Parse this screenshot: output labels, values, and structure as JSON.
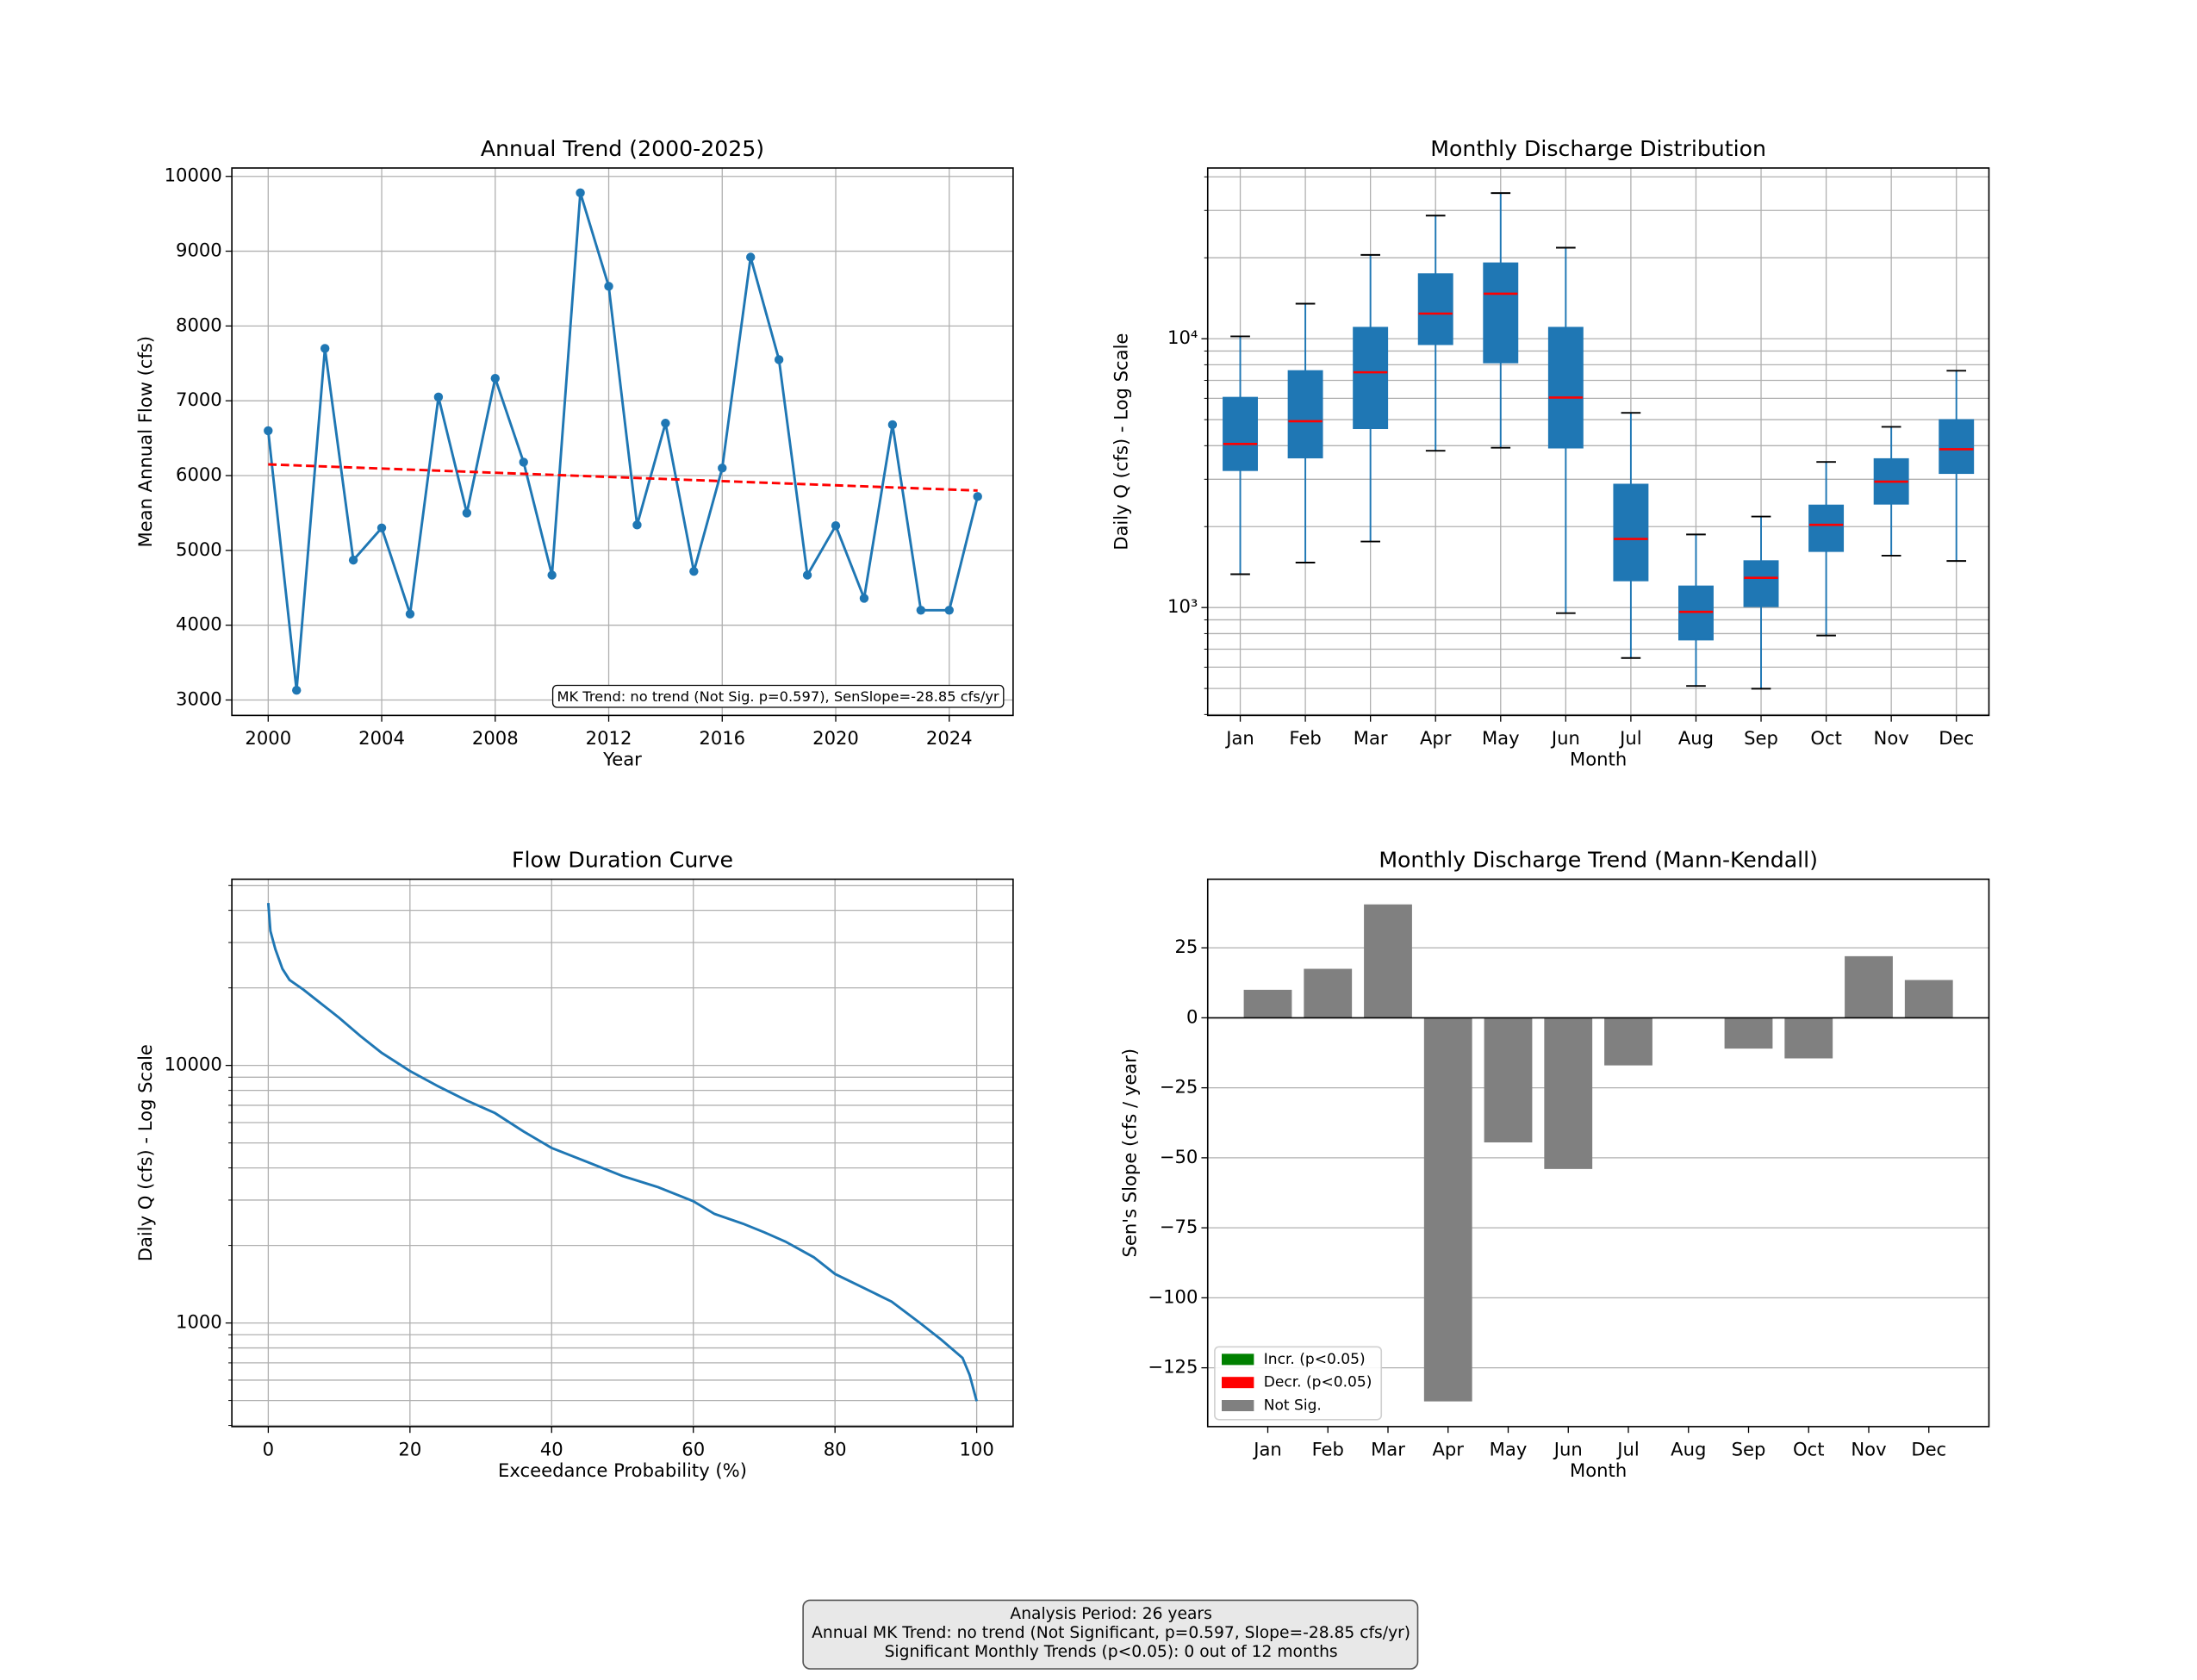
{
  "chart_data": [
    {
      "type": "line",
      "title": "Annual Trend (2000-2025)",
      "x_label": "Year",
      "y_label": "Mean Annual Flow (cfs)",
      "x": [
        2000,
        2001,
        2002,
        2003,
        2004,
        2005,
        2006,
        2007,
        2008,
        2009,
        2010,
        2011,
        2012,
        2013,
        2014,
        2015,
        2016,
        2017,
        2018,
        2019,
        2020,
        2021,
        2022,
        2023,
        2024,
        2025
      ],
      "values": [
        6600,
        3130,
        7700,
        4870,
        5300,
        4150,
        7050,
        5500,
        7300,
        6180,
        4670,
        9780,
        8530,
        5340,
        6700,
        4720,
        6100,
        8920,
        7550,
        4670,
        5330,
        4360,
        6680,
        4200,
        4200,
        5720
      ],
      "color": "#1f77b4",
      "markers": true,
      "trend": {
        "x": [
          2000,
          2025
        ],
        "values": [
          6150,
          5800
        ],
        "color": "#ff0000",
        "style": "dashed"
      },
      "annotation": "MK Trend: no trend (Not Sig. p=0.597), SenSlope=-28.85 cfs/yr",
      "xlim": [
        1998.72,
        2026.25
      ],
      "xticks": [
        2000,
        2004,
        2008,
        2012,
        2016,
        2020,
        2024
      ],
      "ylim": [
        2794,
        10112
      ],
      "yticks": [
        3000,
        4000,
        5000,
        6000,
        7000,
        8000,
        9000,
        10000
      ],
      "grid": "both"
    },
    {
      "type": "box",
      "title": "Monthly Discharge Distribution",
      "x_label": "Month",
      "y_label": "Daily Q (cfs) - Log Scale",
      "categories": [
        "Jan",
        "Feb",
        "Mar",
        "Apr",
        "May",
        "Jun",
        "Jul",
        "Aug",
        "Sep",
        "Oct",
        "Nov",
        "Dec"
      ],
      "whisker_low": [
        1330,
        1470,
        1760,
        3830,
        3930,
        953,
        649,
        511,
        499,
        787,
        1560,
        1490
      ],
      "q1": [
        3240,
        3610,
        4640,
        9530,
        8150,
        3930,
        1260,
        759,
        1010,
        1620,
        2430,
        3160
      ],
      "median": [
        4060,
        4930,
        7500,
        12400,
        14700,
        6040,
        1800,
        964,
        1290,
        2030,
        2940,
        3880
      ],
      "q3": [
        6040,
        7590,
        11000,
        17400,
        19100,
        11000,
        2870,
        1200,
        1490,
        2400,
        3570,
        4990
      ],
      "whisker_high": [
        10200,
        13500,
        20500,
        28700,
        34800,
        21800,
        5300,
        1870,
        2180,
        3480,
        4700,
        7600
      ],
      "box_color": "#1f77b4",
      "median_color": "#ff0000",
      "cap_color": "#000000",
      "log_scale": true,
      "ylim": [
        397,
        43150
      ],
      "yticks": [
        {
          "value": 1000,
          "label": "10³"
        },
        {
          "value": 10000,
          "label": "10⁴"
        }
      ],
      "minor_yticks": [
        400,
        500,
        600,
        700,
        800,
        900,
        2000,
        3000,
        4000,
        5000,
        6000,
        7000,
        8000,
        9000,
        20000,
        30000,
        40000
      ],
      "grid": "both"
    },
    {
      "type": "line",
      "title": "Flow Duration Curve",
      "x_label": "Exceedance Probability (%)",
      "y_label": "Daily Q (cfs) - Log Scale",
      "x": [
        0,
        0.3,
        1,
        2,
        3,
        5,
        7,
        10,
        13,
        16,
        20,
        24,
        28,
        32,
        36,
        40,
        45,
        50,
        55,
        60,
        63,
        67,
        70,
        73,
        77,
        80,
        84,
        88,
        92,
        95,
        98,
        99,
        100
      ],
      "values": [
        42700,
        33250,
        28260,
        23700,
        21470,
        19650,
        17780,
        15310,
        13010,
        11190,
        9510,
        8290,
        7310,
        6530,
        5550,
        4780,
        4220,
        3720,
        3370,
        2970,
        2650,
        2430,
        2250,
        2070,
        1800,
        1550,
        1370,
        1210,
        1000,
        861,
        732,
        629,
        497
      ],
      "color": "#1f77b4",
      "markers": false,
      "xlim": [
        -5.14,
        105.14
      ],
      "xticks": [
        0,
        20,
        40,
        60,
        80,
        100
      ],
      "log_scale": true,
      "ylim": [
        396,
        52840
      ],
      "yticks": [
        1000,
        10000
      ],
      "minor_yticks": [
        400,
        500,
        600,
        700,
        800,
        900,
        2000,
        3000,
        4000,
        5000,
        6000,
        7000,
        8000,
        9000,
        20000,
        30000,
        40000,
        50000
      ],
      "grid": "both"
    },
    {
      "type": "bar",
      "title": "Monthly Discharge Trend (Mann-Kendall)",
      "x_label": "Month",
      "y_label": "Sen's Slope (cfs / year)",
      "categories": [
        "Jan",
        "Feb",
        "Mar",
        "Apr",
        "May",
        "Jun",
        "Jul",
        "Aug",
        "Sep",
        "Oct",
        "Nov",
        "Dec"
      ],
      "values": [
        10,
        17.5,
        40.5,
        -137,
        -44.5,
        -54,
        -17,
        0,
        -11,
        -14.5,
        22,
        13.5
      ],
      "color": "#808080",
      "zero_line": true,
      "legend": [
        {
          "label": "Incr. (p<0.05)",
          "color": "#008000"
        },
        {
          "label": "Decr. (p<0.05)",
          "color": "#ff0000"
        },
        {
          "label": "Not Sig.",
          "color": "#808080"
        }
      ],
      "legend_position": "lower left",
      "ylim": [
        -146,
        49.5
      ],
      "yticks": [
        {
          "value": -125,
          "label": "−125"
        },
        {
          "value": -100,
          "label": "−100"
        },
        {
          "value": -75,
          "label": "−75"
        },
        {
          "value": -50,
          "label": "−50"
        },
        {
          "value": -25,
          "label": "−25"
        },
        0,
        25
      ],
      "grid": "y"
    }
  ],
  "summary": [
    "Analysis Period: 26 years",
    "Annual MK Trend: no trend (Not Significant, p=0.597, Slope=-28.85 cfs/yr)",
    "Significant Monthly Trends (p<0.05): 0 out of 12 months"
  ]
}
